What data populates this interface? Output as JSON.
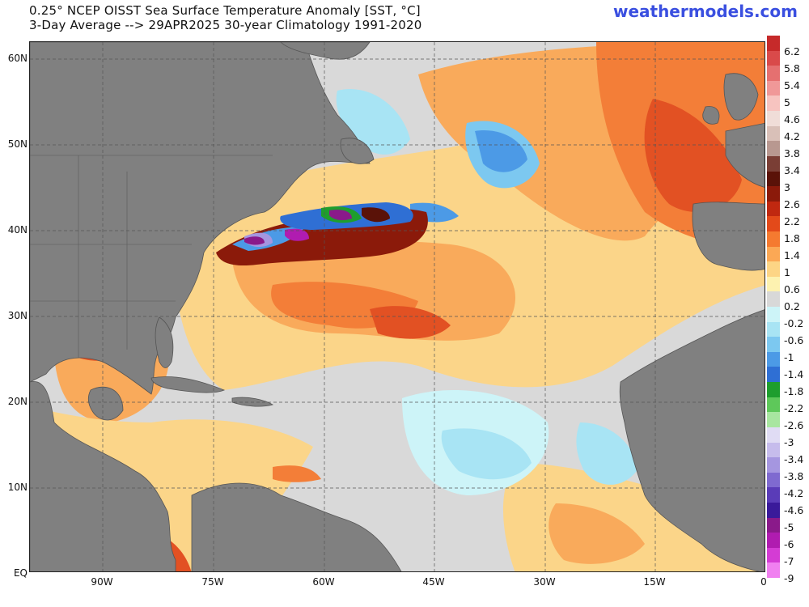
{
  "header": {
    "title_line1": "0.25° NCEP OISST Sea Surface Temperature Anomaly [SST, °C]",
    "title_line2": "3-Day Average --> 29APR2025   30-year Climatology 1991-2020",
    "brand": "weathermodels.com"
  },
  "axes": {
    "lat_labels": [
      "60N",
      "50N",
      "40N",
      "30N",
      "20N",
      "10N",
      "EQ"
    ],
    "lon_labels": [
      "90W",
      "75W",
      "60W",
      "45W",
      "30W",
      "15W",
      "0"
    ]
  },
  "colorbar": {
    "labels": [
      "6.2",
      "5.8",
      "5.4",
      "5",
      "4.6",
      "4.2",
      "3.8",
      "3.4",
      "3",
      "2.6",
      "2.2",
      "1.8",
      "1.4",
      "1",
      "0.6",
      "0.2",
      "-0.2",
      "-0.6",
      "-1",
      "-1.4",
      "-1.8",
      "-2.2",
      "-2.6",
      "-3",
      "-3.4",
      "-3.8",
      "-4.2",
      "-4.6",
      "-5",
      "-6",
      "-7",
      "-9"
    ],
    "colors": [
      "#c62a2a",
      "#d94a4a",
      "#e57070",
      "#f09898",
      "#f7c4c0",
      "#f0ddd8",
      "#d9c0b8",
      "#b89890",
      "#7a3e35",
      "#5a1208",
      "#8b1a0a",
      "#c02810",
      "#e34a1a",
      "#f57a30",
      "#fba855",
      "#fdd585",
      "#fdf2b0",
      "#d8d8d8",
      "#cdf4f8",
      "#a8e4f4",
      "#7cc8f0",
      "#4c9ae6",
      "#2f6fd4",
      "#1e9e2e",
      "#5ec85a",
      "#a8e6a0",
      "#e0dcf4",
      "#c6bcec",
      "#a596e0",
      "#7f6ad0",
      "#5a3cb8",
      "#3a1a9a",
      "#8a1a8a",
      "#b01cb0",
      "#d43cd4",
      "#f080f0"
    ]
  },
  "map": {
    "land_color": "#808080",
    "no_anomaly_color": "#d9d9d9"
  }
}
